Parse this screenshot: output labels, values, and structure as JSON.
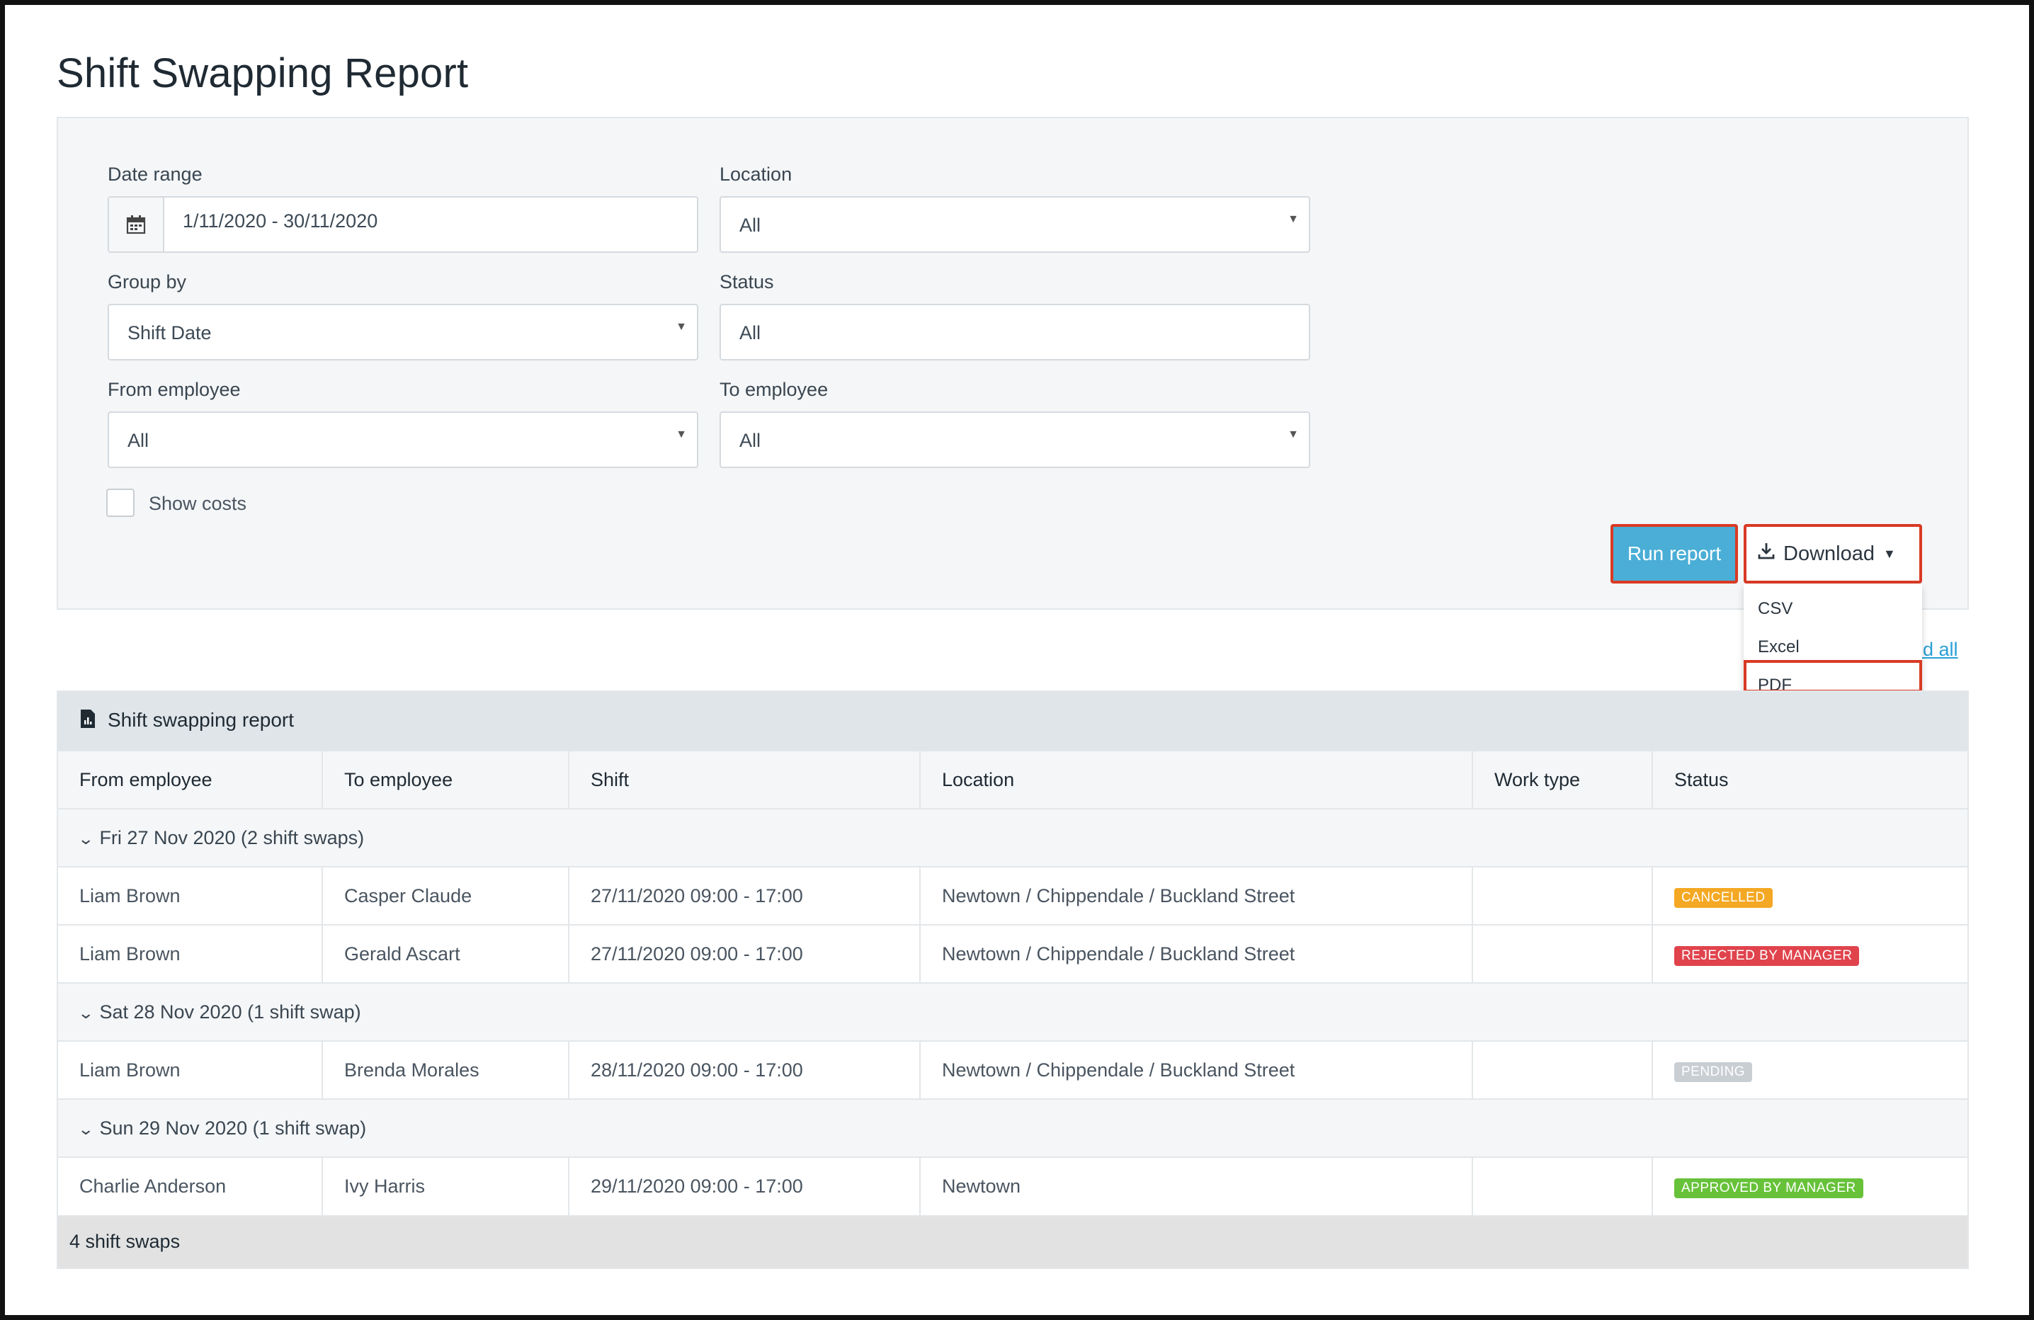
{
  "page": {
    "title": "Shift Swapping Report"
  },
  "filters": {
    "date_range": {
      "label": "Date range",
      "value": "1/11/2020 - 30/11/2020"
    },
    "location": {
      "label": "Location",
      "value": "All"
    },
    "group_by": {
      "label": "Group by",
      "value": "Shift Date"
    },
    "status": {
      "label": "Status",
      "value": "All"
    },
    "from_employee": {
      "label": "From employee",
      "value": "All"
    },
    "to_employee": {
      "label": "To employee",
      "value": "All"
    },
    "show_costs": {
      "label": "Show costs",
      "checked": false
    }
  },
  "actions": {
    "run_report": "Run report",
    "download": "Download",
    "download_options": [
      "CSV",
      "Excel",
      "PDF"
    ],
    "expand_all_partial": "nd all"
  },
  "report": {
    "title": "Shift swapping report",
    "columns": [
      "From employee",
      "To employee",
      "Shift",
      "Location",
      "Work type",
      "Status"
    ],
    "groups": [
      {
        "label": "Fri 27 Nov 2020 (2 shift swaps)",
        "rows": [
          {
            "from": "Liam Brown",
            "to": "Casper Claude",
            "shift": "27/11/2020 09:00 - 17:00",
            "location": "Newtown / Chippendale / Buckland Street",
            "work_type": "",
            "status": "CANCELLED"
          },
          {
            "from": "Liam Brown",
            "to": "Gerald Ascart",
            "shift": "27/11/2020 09:00 - 17:00",
            "location": "Newtown / Chippendale / Buckland Street",
            "work_type": "",
            "status": "REJECTED BY MANAGER"
          }
        ]
      },
      {
        "label": "Sat 28 Nov 2020 (1 shift swap)",
        "rows": [
          {
            "from": "Liam Brown",
            "to": "Brenda Morales",
            "shift": "28/11/2020 09:00 - 17:00",
            "location": "Newtown / Chippendale / Buckland Street",
            "work_type": "",
            "status": "PENDING"
          }
        ]
      },
      {
        "label": "Sun 29 Nov 2020 (1 shift swap)",
        "rows": [
          {
            "from": "Charlie Anderson",
            "to": "Ivy Harris",
            "shift": "29/11/2020 09:00 - 17:00",
            "location": "Newtown",
            "work_type": "",
            "status": "APPROVED BY MANAGER"
          }
        ]
      }
    ],
    "footer": "4 shift swaps"
  },
  "colors": {
    "primary_button": "#4aaed6",
    "highlight_border": "#d93a25",
    "cancelled": "#f4a823",
    "rejected": "#e0434c",
    "pending": "#c9ced3",
    "approved": "#67c23a"
  },
  "icons": {
    "calendar": "calendar-icon",
    "download": "download-icon",
    "report": "report-icon",
    "chevron": "chevron-down-icon"
  }
}
